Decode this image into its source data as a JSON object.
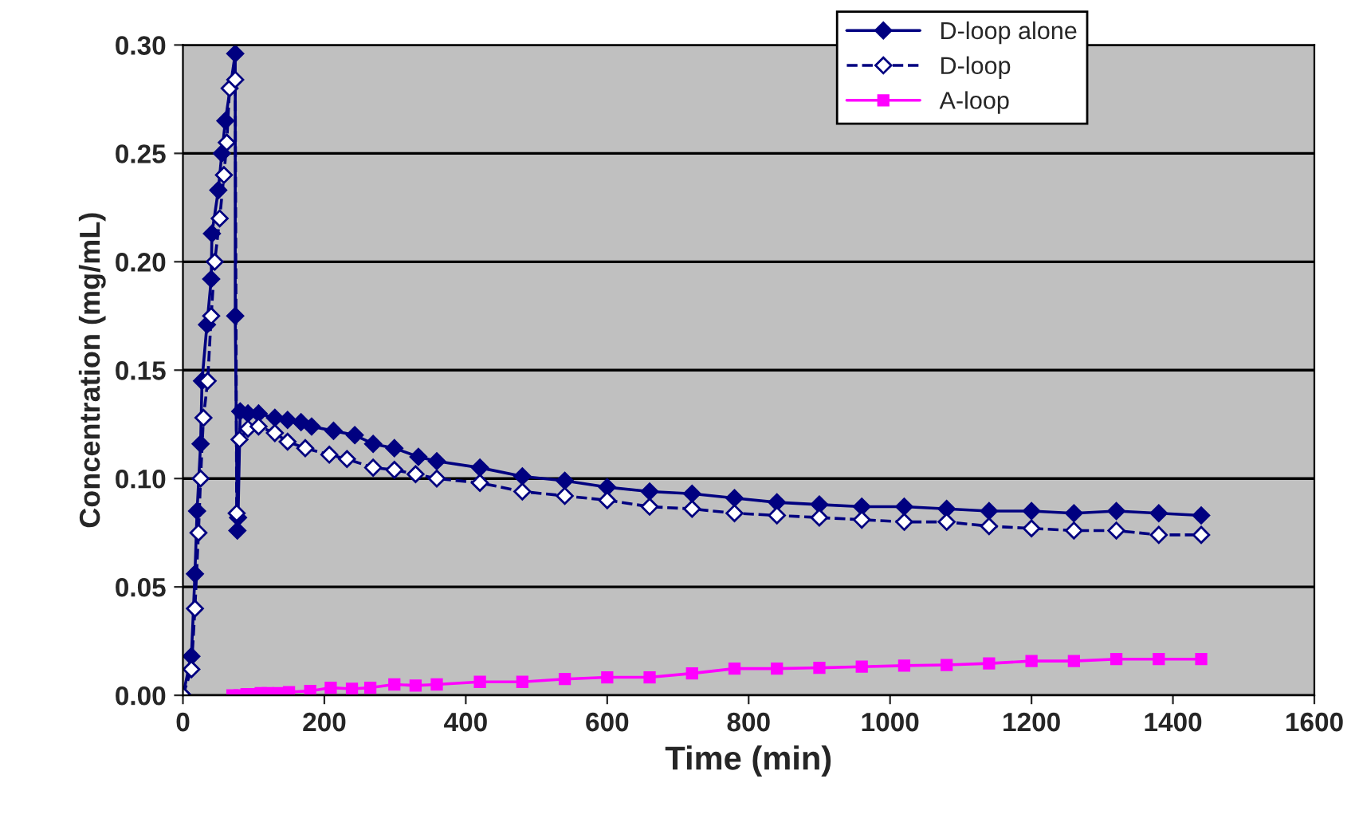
{
  "chart_data": {
    "type": "line",
    "xlabel": "Time (min)",
    "ylabel": "Concentration (mg/mL)",
    "xlim": [
      0,
      1600
    ],
    "xticks": [
      0,
      200,
      400,
      600,
      800,
      1000,
      1200,
      1400,
      1600
    ],
    "ylim": [
      0,
      0.3
    ],
    "yticks": [
      {
        "value": 0,
        "label": "0.00"
      },
      {
        "value": 0.05,
        "label": "0.05"
      },
      {
        "value": 0.1,
        "label": "0.10"
      },
      {
        "value": 0.15,
        "label": "0.15"
      },
      {
        "value": 0.2,
        "label": "0.20"
      },
      {
        "value": 0.25,
        "label": "0.25"
      },
      {
        "value": 0.3,
        "label": "0.30"
      }
    ],
    "grid": "y",
    "legend": "top right",
    "series": [
      {
        "name": "D-loop alone",
        "color": "#000080",
        "marker": "diamond",
        "line_style": "solid",
        "x": [
          0,
          12,
          17,
          20,
          25,
          27,
          34,
          40,
          41,
          50,
          55,
          60,
          74,
          74,
          77,
          78,
          81,
          92,
          107,
          130,
          148,
          167,
          182,
          213,
          243,
          269,
          299,
          333,
          359,
          420,
          480,
          540,
          600,
          660,
          720,
          780,
          840,
          900,
          960,
          1020,
          1080,
          1140,
          1200,
          1260,
          1320,
          1380,
          1440
        ],
        "values": [
          0,
          0.018,
          0.056,
          0.085,
          0.116,
          0.145,
          0.171,
          0.192,
          0.213,
          0.233,
          0.25,
          0.265,
          0.296,
          0.175,
          0.076,
          0.082,
          0.131,
          0.13,
          0.13,
          0.128,
          0.127,
          0.126,
          0.124,
          0.122,
          0.12,
          0.116,
          0.114,
          0.11,
          0.108,
          0.105,
          0.101,
          0.099,
          0.096,
          0.094,
          0.093,
          0.091,
          0.089,
          0.088,
          0.087,
          0.087,
          0.086,
          0.085,
          0.085,
          0.084,
          0.085,
          0.084,
          0.083
        ]
      },
      {
        "name": "D-loop",
        "color": "#000080",
        "marker": "diamond",
        "line_style": "dashed",
        "x": [
          0,
          12,
          17,
          22,
          25,
          29,
          35,
          40,
          45,
          52,
          58,
          62,
          66,
          74,
          76,
          80,
          92,
          107,
          130,
          148,
          173,
          207,
          232,
          269,
          299,
          329,
          359,
          420,
          480,
          540,
          600,
          660,
          720,
          780,
          840,
          900,
          960,
          1020,
          1080,
          1140,
          1200,
          1260,
          1320,
          1380,
          1440
        ],
        "values": [
          0,
          0.012,
          0.04,
          0.075,
          0.1,
          0.128,
          0.145,
          0.175,
          0.2,
          0.22,
          0.24,
          0.255,
          0.28,
          0.284,
          0.084,
          0.118,
          0.123,
          0.124,
          0.121,
          0.117,
          0.114,
          0.111,
          0.109,
          0.105,
          0.104,
          0.102,
          0.1,
          0.098,
          0.094,
          0.092,
          0.09,
          0.087,
          0.086,
          0.084,
          0.083,
          0.082,
          0.081,
          0.08,
          0.08,
          0.078,
          0.077,
          0.076,
          0.076,
          0.074,
          0.074
        ]
      },
      {
        "name": "A-loop",
        "color": "#ff00ff",
        "marker": "square",
        "line_style": "solid",
        "x": [
          70,
          80,
          90,
          100,
          110,
          120,
          135,
          150,
          180,
          209,
          239,
          265,
          299,
          329,
          359,
          420,
          480,
          540,
          600,
          660,
          720,
          780,
          840,
          900,
          960,
          1020,
          1080,
          1140,
          1200,
          1260,
          1320,
          1380,
          1440
        ],
        "values": [
          0,
          0,
          0.0005,
          0.0005,
          0.001,
          0.001,
          0.001,
          0.0015,
          0.002,
          0.0035,
          0.003,
          0.0035,
          0.005,
          0.0045,
          0.005,
          0.0062,
          0.0062,
          0.0075,
          0.0083,
          0.0083,
          0.0101,
          0.0123,
          0.0123,
          0.0127,
          0.0132,
          0.0137,
          0.014,
          0.0147,
          0.0158,
          0.0158,
          0.0167,
          0.0167,
          0.0167
        ]
      }
    ]
  }
}
